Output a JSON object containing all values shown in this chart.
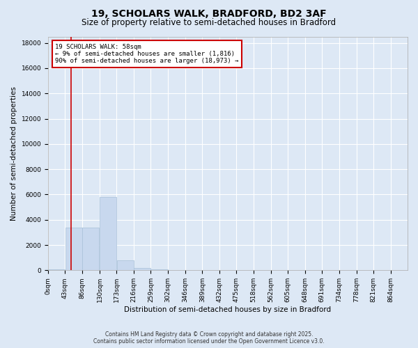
{
  "title_line1": "19, SCHOLARS WALK, BRADFORD, BD2 3AF",
  "title_line2": "Size of property relative to semi-detached houses in Bradford",
  "xlabel": "Distribution of semi-detached houses by size in Bradford",
  "ylabel": "Number of semi-detached properties",
  "property_size": 58,
  "annotation_text_line1": "19 SCHOLARS WALK: 58sqm",
  "annotation_text_line2": "← 9% of semi-detached houses are smaller (1,816)",
  "annotation_text_line3": "90% of semi-detached houses are larger (18,973) →",
  "bar_color": "#c8d8ee",
  "bar_edge_color": "#a8c0d8",
  "vline_color": "#cc0000",
  "annotation_box_color": "#ffffff",
  "annotation_box_edge": "#cc0000",
  "background_color": "#dde8f5",
  "grid_color": "#ffffff",
  "categories": [
    "0sqm",
    "43sqm",
    "86sqm",
    "130sqm",
    "173sqm",
    "216sqm",
    "259sqm",
    "302sqm",
    "346sqm",
    "389sqm",
    "432sqm",
    "475sqm",
    "518sqm",
    "562sqm",
    "605sqm",
    "648sqm",
    "691sqm",
    "734sqm",
    "778sqm",
    "821sqm",
    "864sqm"
  ],
  "bin_edges": [
    0,
    43,
    86,
    130,
    173,
    216,
    259,
    302,
    346,
    389,
    432,
    475,
    518,
    562,
    605,
    648,
    691,
    734,
    778,
    821,
    864
  ],
  "values": [
    100,
    3400,
    3400,
    5800,
    800,
    200,
    80,
    30,
    0,
    0,
    0,
    0,
    0,
    0,
    0,
    0,
    0,
    0,
    0,
    0
  ],
  "ylim": [
    0,
    18500
  ],
  "yticks": [
    0,
    2000,
    4000,
    6000,
    8000,
    10000,
    12000,
    14000,
    16000,
    18000
  ],
  "footer_line1": "Contains HM Land Registry data © Crown copyright and database right 2025.",
  "footer_line2": "Contains public sector information licensed under the Open Government Licence v3.0.",
  "title_fontsize": 10,
  "subtitle_fontsize": 8.5,
  "tick_fontsize": 6.5,
  "axis_label_fontsize": 7.5
}
